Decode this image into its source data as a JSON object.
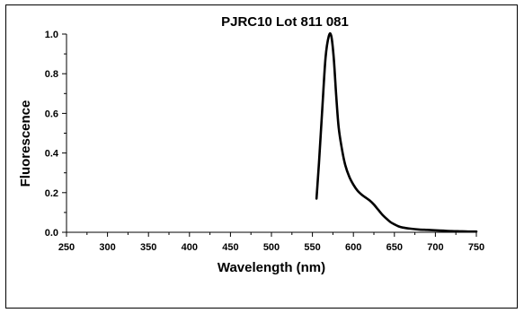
{
  "chart_data": {
    "type": "line",
    "title": "PJRC10  Lot 811 081",
    "xlabel": "Wavelength (nm)",
    "ylabel": "Fluorescence",
    "xlim": [
      250,
      750
    ],
    "ylim": [
      0.0,
      1.0
    ],
    "xticks": [
      250,
      300,
      350,
      400,
      450,
      500,
      550,
      600,
      650,
      700,
      750
    ],
    "yticks": [
      0.0,
      0.2,
      0.4,
      0.6,
      0.8,
      1.0
    ],
    "xtick_labels": [
      "250",
      "300",
      "350",
      "400",
      "450",
      "500",
      "550",
      "600",
      "650",
      "700",
      "750"
    ],
    "ytick_labels": [
      "0.0",
      "0.2",
      "0.4",
      "0.6",
      "0.8",
      "1.0"
    ],
    "grid": false,
    "series": [
      {
        "color": "#000000",
        "x": [
          555,
          558,
          562,
          566,
          570,
          573,
          576,
          579,
          582,
          586,
          590,
          595,
          600,
          605,
          610,
          615,
          620,
          625,
          630,
          635,
          640,
          645,
          650,
          655,
          660,
          670,
          680,
          690,
          700,
          710,
          720,
          730,
          740,
          750
        ],
        "y": [
          0.17,
          0.35,
          0.62,
          0.88,
          0.99,
          0.99,
          0.88,
          0.69,
          0.53,
          0.42,
          0.34,
          0.28,
          0.24,
          0.21,
          0.19,
          0.175,
          0.16,
          0.14,
          0.115,
          0.09,
          0.07,
          0.052,
          0.04,
          0.03,
          0.024,
          0.018,
          0.014,
          0.012,
          0.01,
          0.008,
          0.006,
          0.005,
          0.004,
          0.004
        ]
      }
    ]
  }
}
